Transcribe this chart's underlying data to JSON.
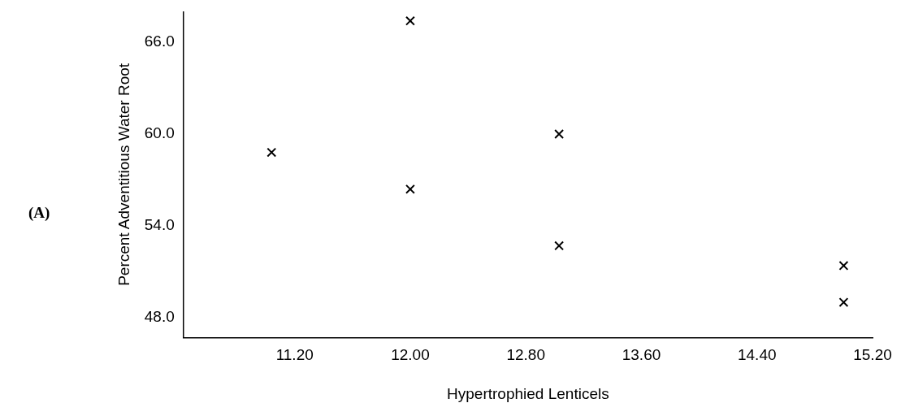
{
  "chart_data": {
    "type": "scatter",
    "xlabel": "Hypertrophied Lenticels",
    "ylabel": "Percent Adventitious Water Root",
    "annotations": [
      "(A)"
    ],
    "x": [
      11.04,
      12.0,
      12.0,
      13.03,
      13.03,
      15.0,
      15.0
    ],
    "values": [
      58.8,
      67.4,
      56.4,
      60.0,
      52.7,
      51.4,
      49.0
    ],
    "color": "#000000",
    "marker": "cross",
    "grid": false,
    "legend": false,
    "xlim": [
      10.43,
      15.2
    ],
    "xticks": [
      {
        "value": 11.2,
        "label": "11.20"
      },
      {
        "value": 12.0,
        "label": "12.00"
      },
      {
        "value": 12.8,
        "label": "12.80"
      },
      {
        "value": 13.6,
        "label": "13.60"
      },
      {
        "value": 14.4,
        "label": "14.40"
      },
      {
        "value": 15.2,
        "label": "15.20"
      }
    ],
    "ylim": [
      46.7,
      68
    ],
    "yticks": [
      {
        "value": 48,
        "label": "48.0"
      },
      {
        "value": 54,
        "label": "54.0"
      },
      {
        "value": 60,
        "label": "60.0"
      },
      {
        "value": 66,
        "label": "66.0"
      }
    ]
  }
}
